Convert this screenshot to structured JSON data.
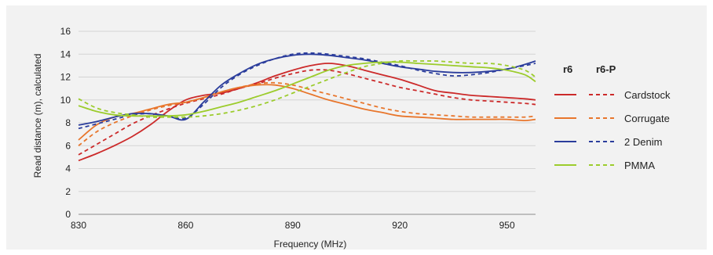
{
  "chart_data": {
    "type": "line",
    "title": "",
    "xlabel": "Frequency (MHz)",
    "ylabel": "Read distance (m), calculated",
    "xlim": [
      830,
      958
    ],
    "ylim": [
      0,
      16
    ],
    "x_ticks": [
      830,
      860,
      890,
      920,
      950
    ],
    "y_ticks": [
      0,
      2,
      4,
      6,
      8,
      10,
      12,
      14,
      16
    ],
    "grid": "horizontal",
    "legend_position": "right",
    "legend_headers": [
      "r6",
      "r6-P"
    ],
    "legend_entries": [
      {
        "label": "Cardstock",
        "color": "#cc2a2a"
      },
      {
        "label": "Corrugate",
        "color": "#e8762c"
      },
      {
        "label": "2 Denim",
        "color": "#2b3d9c"
      },
      {
        "label": "PMMA",
        "color": "#9ccc2c"
      }
    ],
    "x": [
      830,
      835,
      840,
      845,
      850,
      855,
      860,
      865,
      870,
      875,
      880,
      885,
      890,
      895,
      900,
      905,
      910,
      915,
      920,
      925,
      930,
      935,
      940,
      945,
      950,
      955,
      958
    ],
    "series": [
      {
        "legend": "Cardstock",
        "variant": "r6",
        "dashed": false,
        "color": "#cc2a2a",
        "values": [
          4.7,
          5.3,
          6.0,
          6.8,
          7.8,
          9.0,
          10.0,
          10.4,
          10.6,
          11.0,
          11.5,
          12.1,
          12.6,
          13.0,
          13.2,
          13.0,
          12.6,
          12.2,
          11.8,
          11.3,
          10.8,
          10.6,
          10.4,
          10.3,
          10.2,
          10.1,
          10.0
        ]
      },
      {
        "legend": "Cardstock",
        "variant": "r6-P",
        "dashed": true,
        "color": "#cc2a2a",
        "values": [
          5.2,
          6.1,
          7.0,
          7.9,
          8.6,
          9.2,
          9.7,
          10.1,
          10.5,
          11.0,
          11.4,
          11.9,
          12.3,
          12.6,
          12.6,
          12.3,
          11.9,
          11.5,
          11.1,
          10.8,
          10.5,
          10.2,
          10.0,
          9.9,
          9.8,
          9.7,
          9.6
        ]
      },
      {
        "legend": "Corrugate",
        "variant": "r6",
        "dashed": false,
        "color": "#e8762c",
        "values": [
          6.5,
          7.8,
          8.5,
          8.8,
          9.2,
          9.6,
          9.8,
          10.2,
          10.7,
          11.1,
          11.3,
          11.3,
          11.0,
          10.5,
          10.0,
          9.6,
          9.2,
          8.9,
          8.6,
          8.5,
          8.4,
          8.3,
          8.3,
          8.3,
          8.3,
          8.2,
          8.3
        ]
      },
      {
        "legend": "Corrugate",
        "variant": "r6-P",
        "dashed": true,
        "color": "#e8762c",
        "values": [
          6.0,
          7.2,
          8.0,
          8.6,
          9.1,
          9.5,
          9.8,
          10.2,
          10.7,
          11.1,
          11.4,
          11.5,
          11.3,
          10.9,
          10.5,
          10.1,
          9.7,
          9.3,
          9.0,
          8.8,
          8.7,
          8.6,
          8.5,
          8.5,
          8.5,
          8.5,
          8.6
        ]
      },
      {
        "legend": "2 Denim",
        "variant": "r6",
        "dashed": false,
        "color": "#2b3d9c",
        "values": [
          7.8,
          8.1,
          8.5,
          8.8,
          8.8,
          8.6,
          8.3,
          9.8,
          11.3,
          12.3,
          13.1,
          13.6,
          13.9,
          14.0,
          13.9,
          13.7,
          13.5,
          13.2,
          12.9,
          12.7,
          12.5,
          12.4,
          12.4,
          12.5,
          12.7,
          13.1,
          13.4
        ]
      },
      {
        "legend": "2 Denim",
        "variant": "r6-P",
        "dashed": true,
        "color": "#2b3d9c",
        "values": [
          7.5,
          7.9,
          8.3,
          8.7,
          8.8,
          8.6,
          8.4,
          9.6,
          11.1,
          12.2,
          13.0,
          13.6,
          14.0,
          14.1,
          14.0,
          13.8,
          13.6,
          13.3,
          13.0,
          12.6,
          12.3,
          12.1,
          12.2,
          12.4,
          12.7,
          13.0,
          13.2
        ]
      },
      {
        "legend": "PMMA",
        "variant": "r6",
        "dashed": false,
        "color": "#9ccc2c",
        "values": [
          9.5,
          9.0,
          8.7,
          8.6,
          8.6,
          8.6,
          8.7,
          9.0,
          9.4,
          9.8,
          10.3,
          10.8,
          11.4,
          12.0,
          12.6,
          13.0,
          13.2,
          13.3,
          13.3,
          13.2,
          13.1,
          13.0,
          12.9,
          12.8,
          12.6,
          12.2,
          11.6
        ]
      },
      {
        "legend": "PMMA",
        "variant": "r6-P",
        "dashed": true,
        "color": "#9ccc2c",
        "values": [
          10.1,
          9.3,
          8.9,
          8.7,
          8.5,
          8.5,
          8.5,
          8.6,
          8.8,
          9.1,
          9.5,
          10.0,
          10.6,
          11.2,
          11.8,
          12.4,
          12.9,
          13.2,
          13.4,
          13.4,
          13.4,
          13.3,
          13.2,
          13.2,
          13.0,
          12.6,
          12.0
        ]
      }
    ]
  }
}
